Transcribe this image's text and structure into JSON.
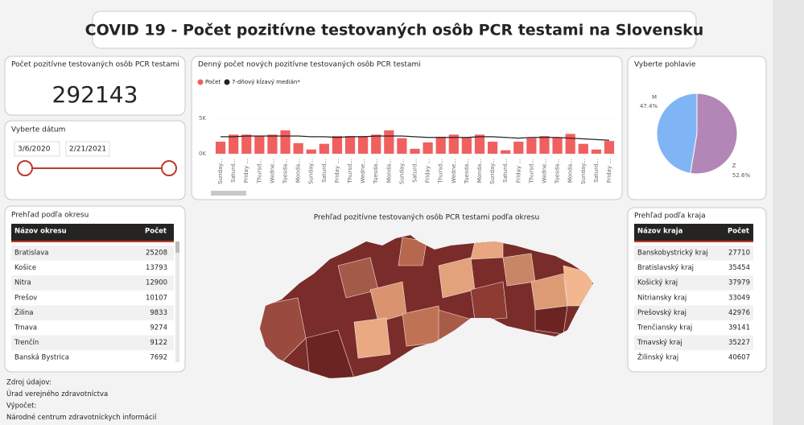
{
  "header": {
    "title": "COVID 19 - Počet pozitívne testovaných osôb PCR testami na Slovensku"
  },
  "card": {
    "title": "Počet pozitívne testovaných osôb PCR testami",
    "value": "292143"
  },
  "date_slicer": {
    "title": "Vyberte dátum",
    "start": "3/6/2020",
    "end": "2/21/2021"
  },
  "chart_data": [
    {
      "type": "bar",
      "title": "Denný počet nových pozitívne testovaných osôb PCR testami",
      "categories": [
        "Sunday...",
        "Saturd...",
        "Friday ...",
        "Thursd...",
        "Wedne...",
        "Tuesda...",
        "Monda...",
        "Sunday...",
        "Saturd...",
        "Friday ...",
        "Thursd...",
        "Wedne...",
        "Tuesda...",
        "Monda...",
        "Sunday...",
        "Saturd...",
        "Friday ...",
        "Thursd...",
        "Wedne...",
        "Tuesda...",
        "Monda...",
        "Sunday...",
        "Saturd...",
        "Friday ...",
        "Thursd...",
        "Wedne...",
        "Tuesda...",
        "Monda...",
        "Sunday...",
        "Saturd...",
        "Friday ..."
      ],
      "series": [
        {
          "name": "Počet",
          "color": "#f0605f",
          "values": [
            1700,
            2700,
            2700,
            2500,
            2700,
            3300,
            1500,
            600,
            1400,
            2500,
            2500,
            2500,
            2700,
            3300,
            2200,
            700,
            1600,
            2400,
            2700,
            2300,
            2700,
            1700,
            500,
            1700,
            2200,
            2500,
            2300,
            2800,
            1400,
            600,
            1800
          ]
        },
        {
          "name": "7-dňový kĺzavý medián*",
          "color": "#252423",
          "type": "line",
          "values": [
            2400,
            2400,
            2500,
            2500,
            2500,
            2500,
            2500,
            2400,
            2400,
            2300,
            2400,
            2400,
            2500,
            2500,
            2500,
            2400,
            2300,
            2300,
            2300,
            2300,
            2400,
            2400,
            2300,
            2200,
            2300,
            2300,
            2300,
            2200,
            2100,
            2000,
            1900
          ]
        }
      ],
      "ylim": [
        0,
        5000
      ],
      "yticks": [
        {
          "value": 0,
          "label": "0K"
        },
        {
          "value": 5000,
          "label": "5K"
        }
      ]
    },
    {
      "type": "pie",
      "title": "Vyberte pohlavie",
      "categories": [
        "M",
        "Z"
      ],
      "values": [
        47.4,
        52.6
      ],
      "value_labels": [
        "47.4%",
        "52.6%"
      ],
      "colors": [
        "#7fb5f5",
        "#b286b6"
      ]
    }
  ],
  "district_table": {
    "title": "Prehľad podľa okresu",
    "columns": [
      "Názov okresu",
      "Počet"
    ],
    "rows": [
      [
        "Bratislava",
        "25208"
      ],
      [
        "Košice",
        "13793"
      ],
      [
        "Nitra",
        "12900"
      ],
      [
        "Prešov",
        "10107"
      ],
      [
        "Žilina",
        "9833"
      ],
      [
        "Trnava",
        "9274"
      ],
      [
        "Trenčín",
        "9122"
      ],
      [
        "Banská Bystrica",
        "7692"
      ]
    ]
  },
  "map": {
    "title": "Prehľad pozitívne testovaných osôb PCR testami podľa okresu"
  },
  "region_table": {
    "title": "Prehľad podľa kraja",
    "columns": [
      "Názov kraja",
      "Počet"
    ],
    "rows": [
      [
        "Banskobystrický kraj",
        "27710"
      ],
      [
        "Bratislavský kraj",
        "35454"
      ],
      [
        "Košický kraj",
        "37979"
      ],
      [
        "Nitriansky kraj",
        "33049"
      ],
      [
        "Prešovský kraj",
        "42976"
      ],
      [
        "Trenčiansky kraj",
        "39141"
      ],
      [
        "Trnavský kraj",
        "35227"
      ],
      [
        "Žilinský kraj",
        "40607"
      ]
    ]
  },
  "footer": [
    "Zdroj údajov:",
    "Úrad verejného zdravotníctva",
    "Výpočet:",
    "Národné centrum zdravotníckych informácií"
  ]
}
